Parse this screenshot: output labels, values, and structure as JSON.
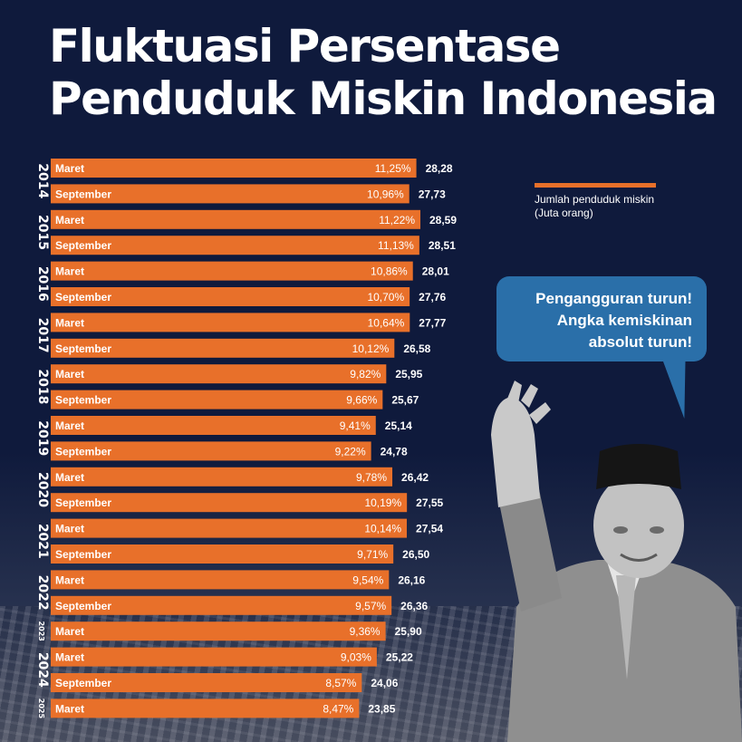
{
  "title": {
    "line1": "Fluktuasi Persentase",
    "line2": "Penduduk Miskin Indonesia"
  },
  "legend": {
    "line1": "Jumlah penduduk miskin",
    "line2": "(Juta orang)"
  },
  "speech_bubble": {
    "line1": "Pengangguran turun!",
    "line2": "Angka kemiskinan",
    "line3": "absolut turun!"
  },
  "colors": {
    "background": "#0f1a3c",
    "bar": "#e8702a",
    "bubble": "#2a6fa9",
    "text": "#ffffff"
  },
  "chart_data": {
    "type": "bar",
    "orientation": "horizontal",
    "series": [
      {
        "name": "Persentase",
        "values": [
          11.25,
          10.96,
          11.22,
          11.13,
          10.86,
          10.7,
          10.64,
          10.12,
          9.82,
          9.66,
          9.41,
          9.22,
          9.78,
          10.19,
          10.14,
          9.71,
          9.54,
          9.57,
          9.36,
          9.03,
          8.57,
          8.47
        ]
      },
      {
        "name": "Jumlah penduduk miskin (Juta orang)",
        "values": [
          28.28,
          27.73,
          28.59,
          28.51,
          28.01,
          27.76,
          27.77,
          26.58,
          25.95,
          25.67,
          25.14,
          24.78,
          26.42,
          27.55,
          27.54,
          26.5,
          26.16,
          26.36,
          25.9,
          25.22,
          24.06,
          23.85
        ]
      }
    ],
    "categories": [
      "Maret",
      "September",
      "Maret",
      "September",
      "Maret",
      "September",
      "Maret",
      "September",
      "Maret",
      "September",
      "Maret",
      "September",
      "Maret",
      "September",
      "Maret",
      "September",
      "Maret",
      "September",
      "Maret",
      "Maret",
      "September",
      "Maret"
    ],
    "pct_labels": [
      "11,25%",
      "10,96%",
      "11,22%",
      "11,13%",
      "10,86%",
      "10,70%",
      "10,64%",
      "10,12%",
      "9,82%",
      "9,66%",
      "9,41%",
      "9,22%",
      "9,78%",
      "10,19%",
      "10,14%",
      "9,71%",
      "9,54%",
      "9,57%",
      "9,36%",
      "9,03%",
      "8,57%",
      "8,47%"
    ],
    "count_labels": [
      "28,28",
      "27,73",
      "28,59",
      "28,51",
      "28,01",
      "27,76",
      "27,77",
      "26,58",
      "25,95",
      "25,67",
      "25,14",
      "24,78",
      "26,42",
      "27,55",
      "27,54",
      "26,50",
      "26,16",
      "26,36",
      "25,90",
      "25,22",
      "24,06",
      "23,85"
    ],
    "year_groups": [
      {
        "year": "2014",
        "rows": 2
      },
      {
        "year": "2015",
        "rows": 2
      },
      {
        "year": "2016",
        "rows": 2
      },
      {
        "year": "2017",
        "rows": 2
      },
      {
        "year": "2018",
        "rows": 2
      },
      {
        "year": "2019",
        "rows": 2
      },
      {
        "year": "2020",
        "rows": 2
      },
      {
        "year": "2021",
        "rows": 2
      },
      {
        "year": "2022",
        "rows": 2
      },
      {
        "year": "2023",
        "rows": 1
      },
      {
        "year": "2024",
        "rows": 2
      },
      {
        "year": "2025",
        "rows": 1
      }
    ],
    "xlim": [
      0,
      28.59
    ]
  }
}
